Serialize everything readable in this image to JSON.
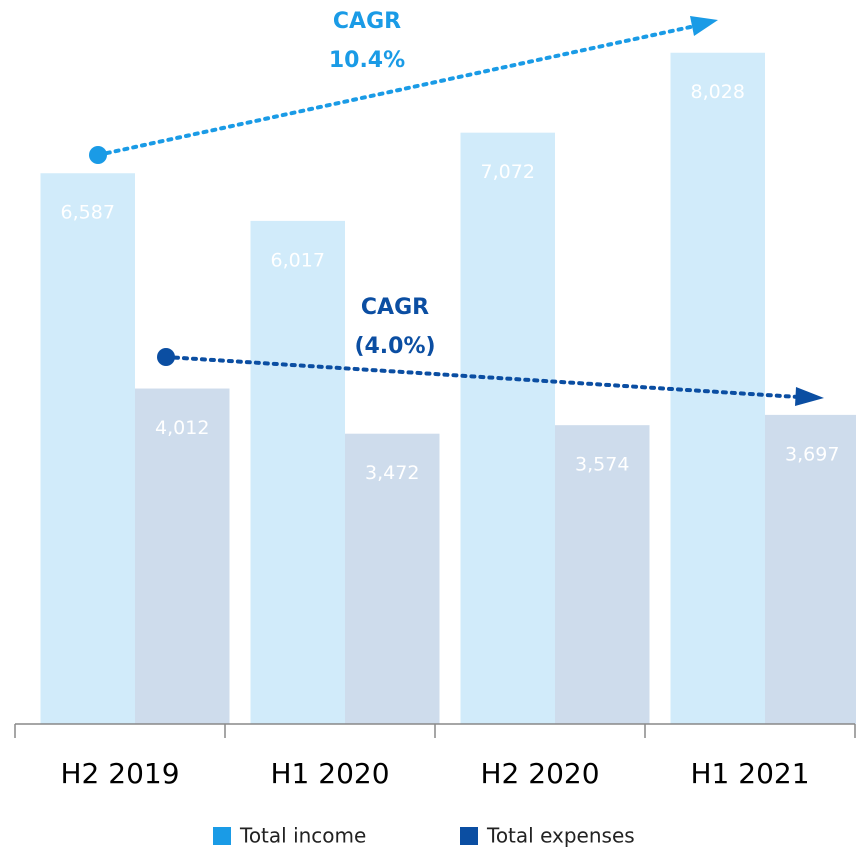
{
  "chart_data": {
    "type": "bar",
    "categories": [
      "H2 2019",
      "H1 2020",
      "H2 2020",
      "H1 2021"
    ],
    "series": [
      {
        "name": "Total income",
        "color": "#1a9be6",
        "values": [
          6587,
          6017,
          7072,
          8028
        ],
        "value_labels": [
          "6,587",
          "6,017",
          "7,072",
          "8,028"
        ]
      },
      {
        "name": "Total expenses",
        "color": "#0b4ea2",
        "values": [
          4012,
          3472,
          3574,
          3697
        ],
        "value_labels": [
          "4,012",
          "3,472",
          "3,574",
          "3,697"
        ]
      }
    ],
    "ylim": [
      0,
      8300
    ],
    "annotations": [
      {
        "title": "CAGR",
        "text": "10.4%"
      },
      {
        "title": "CAGR",
        "text": "(4.0%)"
      }
    ]
  }
}
